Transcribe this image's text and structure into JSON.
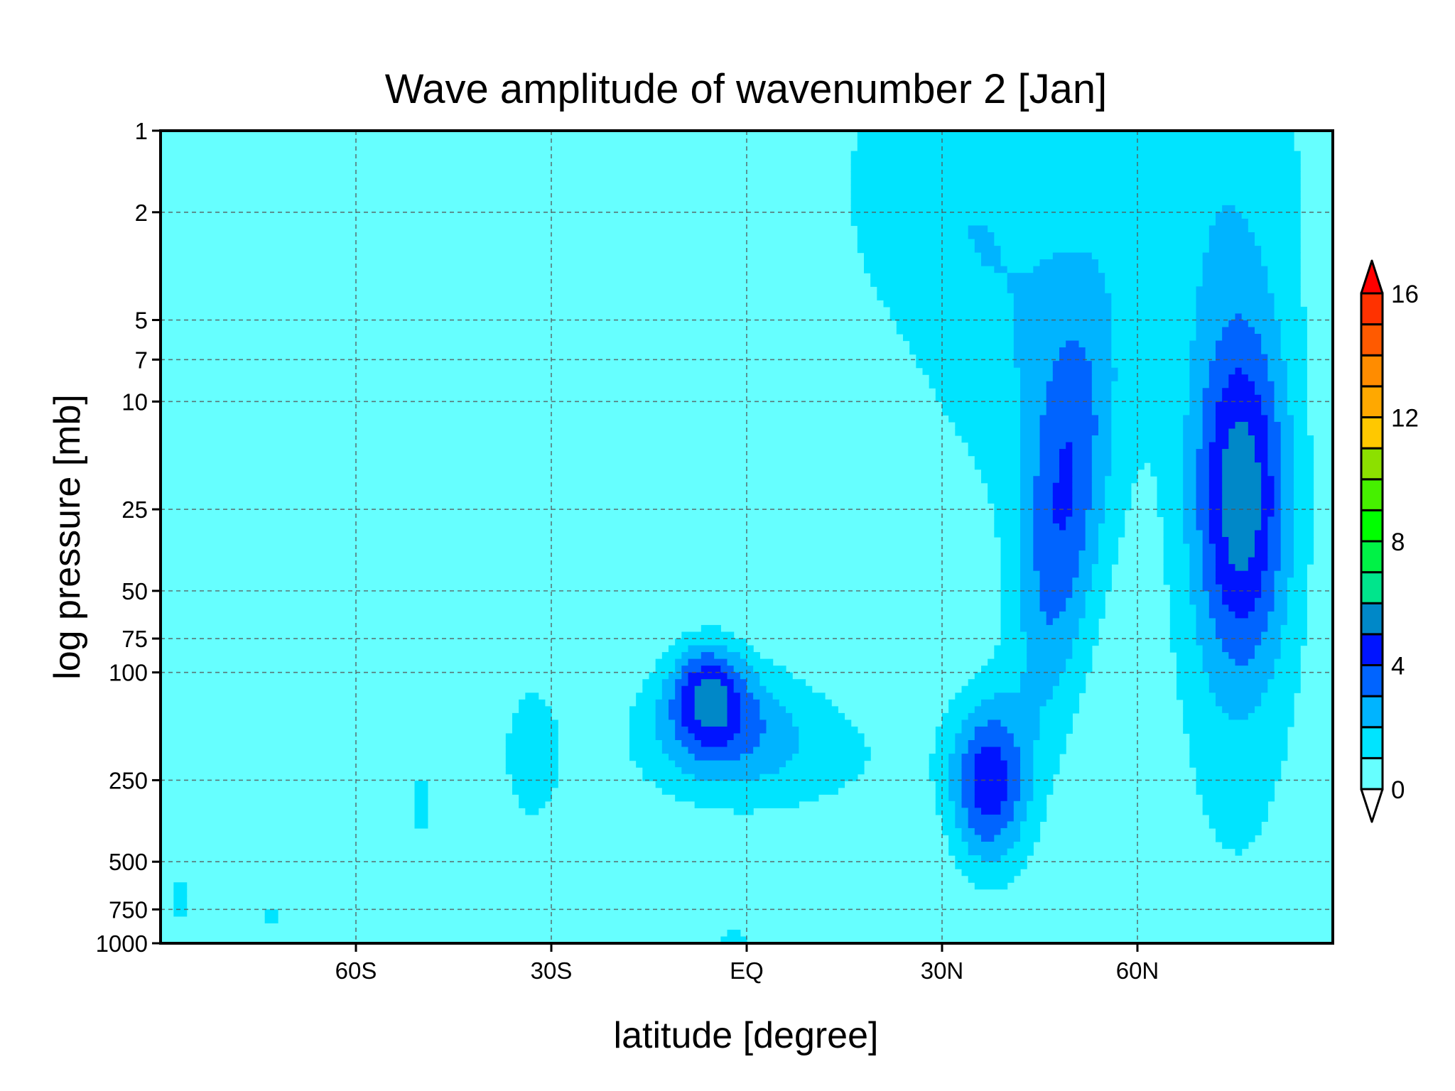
{
  "chart_data": {
    "type": "heatmap",
    "title": "Wave amplitude of wavenumber 2 [Jan]",
    "xlabel": "latitude [degree]",
    "ylabel": "log pressure [mb]",
    "xlim": [
      -90,
      90
    ],
    "ylim": [
      1000,
      1
    ],
    "yscale": "log",
    "grid": true,
    "legend": "colorbar-right",
    "x_ticks": [
      {
        "value": -60,
        "label": "60S"
      },
      {
        "value": -30,
        "label": "30S"
      },
      {
        "value": 0,
        "label": "EQ"
      },
      {
        "value": 30,
        "label": "30N"
      },
      {
        "value": 60,
        "label": "60N"
      }
    ],
    "y_ticks": [
      {
        "value": 1,
        "label": "1"
      },
      {
        "value": 2,
        "label": "2"
      },
      {
        "value": 5,
        "label": "5"
      },
      {
        "value": 7,
        "label": "7"
      },
      {
        "value": 10,
        "label": "10"
      },
      {
        "value": 25,
        "label": "25"
      },
      {
        "value": 50,
        "label": "50"
      },
      {
        "value": 75,
        "label": "75"
      },
      {
        "value": 100,
        "label": "100"
      },
      {
        "value": 250,
        "label": "250"
      },
      {
        "value": 500,
        "label": "500"
      },
      {
        "value": 750,
        "label": "750"
      },
      {
        "value": 1000,
        "label": "1000"
      }
    ],
    "colorbar": {
      "levels": [
        0,
        1,
        2,
        3,
        4,
        5,
        6,
        7,
        8,
        9,
        10,
        11,
        12,
        13,
        14,
        15,
        16
      ],
      "tick_labels": [
        {
          "value": 0,
          "label": "0"
        },
        {
          "value": 4,
          "label": "4"
        },
        {
          "value": 8,
          "label": "8"
        },
        {
          "value": 12,
          "label": "12"
        },
        {
          "value": 16,
          "label": "16"
        }
      ],
      "colors": [
        "#66FFFF",
        "#00E4FF",
        "#00B4FF",
        "#0064FF",
        "#0014FF",
        "#0088C8",
        "#00E58C",
        "#00F246",
        "#00FF00",
        "#46F000",
        "#8CE000",
        "#FFC800",
        "#FFA800",
        "#FF8C00",
        "#FF5A00",
        "#FF3200"
      ],
      "over_color": "#FF0000",
      "under_color": "#FFFFFF"
    },
    "features": [
      {
        "lat_range": [
          63,
          89
        ],
        "p_range": [
          1,
          1000
        ],
        "peak_lat": 76,
        "peak_p": 22,
        "max_amplitude": 4.5
      },
      {
        "lat_range": [
          28,
          55
        ],
        "p_range": [
          1,
          1000
        ],
        "peak_lat": 37,
        "peak_p": 250,
        "max_amplitude": 4.3
      },
      {
        "lat_range": [
          -12,
          3
        ],
        "p_range": [
          100,
          250
        ],
        "peak_lat": -6,
        "peak_p": 115,
        "max_amplitude": 3.3
      },
      {
        "lat_range": [
          -40,
          -27
        ],
        "p_range": [
          100,
          400
        ],
        "peak_lat": -33,
        "peak_p": 200,
        "max_amplitude": 1.5
      },
      {
        "lat_range": [
          -53,
          -48
        ],
        "p_range": [
          220,
          450
        ],
        "peak_lat": -50,
        "peak_p": 300,
        "max_amplitude": 1.3
      }
    ]
  }
}
